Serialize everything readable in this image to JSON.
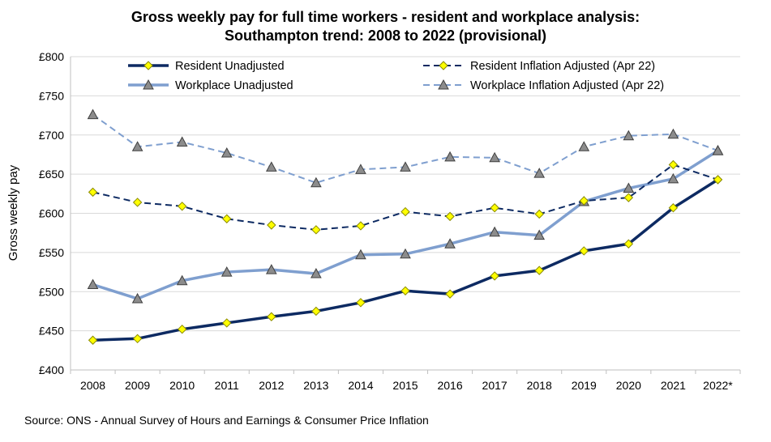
{
  "chart_data": {
    "type": "line",
    "title_line1": "Gross weekly pay for full time workers - resident and workplace analysis:",
    "title_line2": "Southampton trend: 2008 to 2022 (provisional)",
    "xlabel": "",
    "ylabel": "Gross weekly pay",
    "categories": [
      "2008",
      "2009",
      "2010",
      "2011",
      "2012",
      "2013",
      "2014",
      "2015",
      "2016",
      "2017",
      "2018",
      "2019",
      "2020",
      "2021",
      "2022*"
    ],
    "ylim": [
      400,
      800
    ],
    "yticks": [
      400,
      450,
      500,
      550,
      600,
      650,
      700,
      750,
      800
    ],
    "ytick_labels": [
      "£400",
      "£450",
      "£500",
      "£550",
      "£600",
      "£650",
      "£700",
      "£750",
      "£800"
    ],
    "grid": true,
    "legend_position": "top",
    "series": [
      {
        "name": "Resident Unadjusted",
        "color": "#0d2a62",
        "style": "solid",
        "marker": "diamond",
        "values": [
          438,
          440,
          452,
          460,
          468,
          475,
          486,
          501,
          497,
          520,
          527,
          552,
          561,
          607,
          643
        ]
      },
      {
        "name": "Resident Inflation Adjusted (Apr 22)",
        "color": "#0d2a62",
        "style": "dashed",
        "marker": "diamond",
        "values": [
          627,
          614,
          609,
          593,
          585,
          579,
          584,
          602,
          596,
          607,
          599,
          616,
          620,
          662,
          643
        ]
      },
      {
        "name": "Workplace Unadjusted",
        "color": "#7f9fcf",
        "style": "solid",
        "marker": "triangle",
        "values": [
          509,
          491,
          514,
          525,
          528,
          523,
          547,
          548,
          561,
          576,
          572,
          615,
          632,
          644,
          680
        ]
      },
      {
        "name": "Workplace Inflation Adjusted (Apr 22)",
        "color": "#7f9fcf",
        "style": "dashed",
        "marker": "triangle",
        "values": [
          726,
          685,
          691,
          677,
          659,
          639,
          656,
          659,
          672,
          671,
          651,
          685,
          699,
          701,
          680
        ]
      }
    ]
  },
  "source": "Source: ONS  - Annual Survey of Hours and Earnings & Consumer Price Inflation",
  "colors": {
    "diamond_fill": "#ffff00",
    "diamond_stroke": "#8a8a00",
    "triangle_fill": "#8c8c8c",
    "triangle_stroke": "#404040",
    "grid": "#d9d9d9",
    "axis": "#bfbfbf"
  }
}
